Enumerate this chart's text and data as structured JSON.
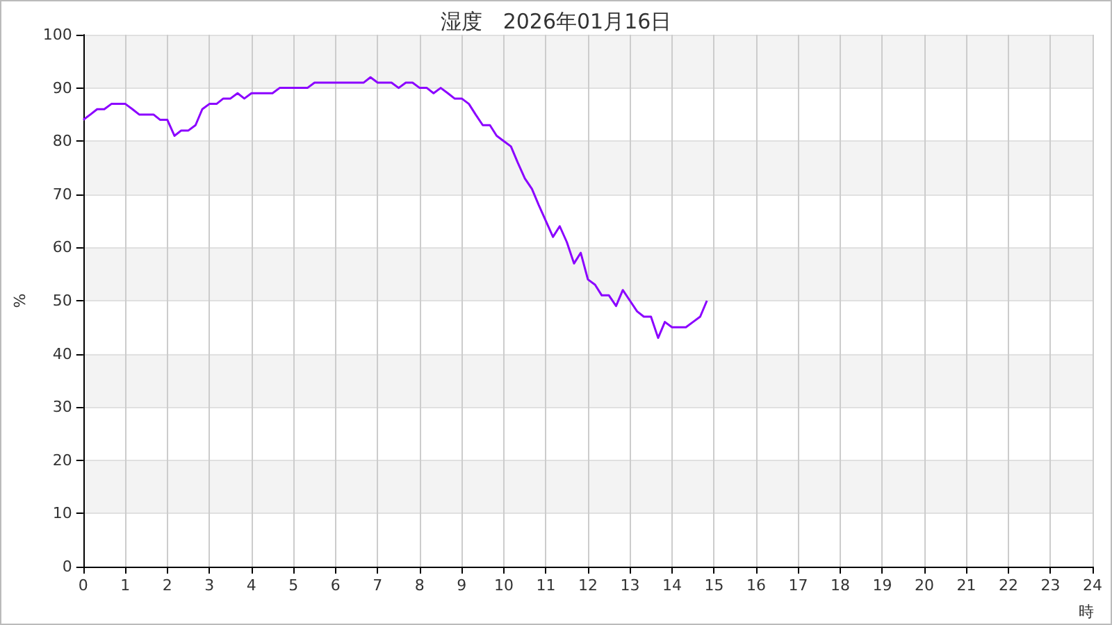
{
  "chart_data": {
    "type": "line",
    "title": "湿度　2026年01月16日",
    "xlabel": "時",
    "ylabel": "%",
    "x": [
      0,
      0.17,
      0.33,
      0.5,
      0.67,
      0.83,
      1,
      1.17,
      1.33,
      1.5,
      1.67,
      1.83,
      2,
      2.17,
      2.33,
      2.5,
      2.67,
      2.83,
      3,
      3.17,
      3.33,
      3.5,
      3.67,
      3.83,
      4,
      4.17,
      4.33,
      4.5,
      4.67,
      4.83,
      5,
      5.17,
      5.33,
      5.5,
      5.67,
      5.83,
      6,
      6.17,
      6.33,
      6.5,
      6.67,
      6.83,
      7,
      7.17,
      7.33,
      7.5,
      7.67,
      7.83,
      8,
      8.17,
      8.33,
      8.5,
      8.67,
      8.83,
      9,
      9.17,
      9.33,
      9.5,
      9.67,
      9.83,
      10,
      10.17,
      10.33,
      10.5,
      10.67,
      10.83,
      11,
      11.17,
      11.33,
      11.5,
      11.67,
      11.83,
      12,
      12.17,
      12.33,
      12.5,
      12.67,
      12.83,
      13,
      13.17,
      13.33,
      13.5,
      13.67,
      13.83,
      14,
      14.17,
      14.33,
      14.5,
      14.67,
      14.83
    ],
    "series": [
      {
        "color": "#8b00ff",
        "values": [
          84,
          85,
          86,
          86,
          87,
          87,
          87,
          86,
          85,
          85,
          85,
          84,
          84,
          81,
          82,
          82,
          83,
          86,
          87,
          87,
          88,
          88,
          89,
          88,
          89,
          89,
          89,
          89,
          90,
          90,
          90,
          90,
          90,
          91,
          91,
          91,
          91,
          91,
          91,
          91,
          91,
          92,
          91,
          91,
          91,
          90,
          91,
          91,
          90,
          90,
          89,
          90,
          89,
          88,
          88,
          87,
          85,
          83,
          83,
          81,
          80,
          79,
          76,
          73,
          71,
          68,
          65,
          62,
          64,
          61,
          57,
          59,
          54,
          53,
          51,
          51,
          49,
          52,
          50,
          48,
          47,
          47,
          43,
          46,
          45,
          45,
          45,
          46,
          47,
          50
        ]
      }
    ],
    "xlim": [
      0,
      24
    ],
    "xticks": [
      0,
      1,
      2,
      3,
      4,
      5,
      6,
      7,
      8,
      9,
      10,
      11,
      12,
      13,
      14,
      15,
      16,
      17,
      18,
      19,
      20,
      21,
      22,
      23,
      24
    ],
    "ylim": [
      0,
      100
    ],
    "yticks": [
      0,
      10,
      20,
      30,
      40,
      50,
      60,
      70,
      80,
      90,
      100
    ],
    "grid": true,
    "marker": "none",
    "line_style": "solid"
  }
}
